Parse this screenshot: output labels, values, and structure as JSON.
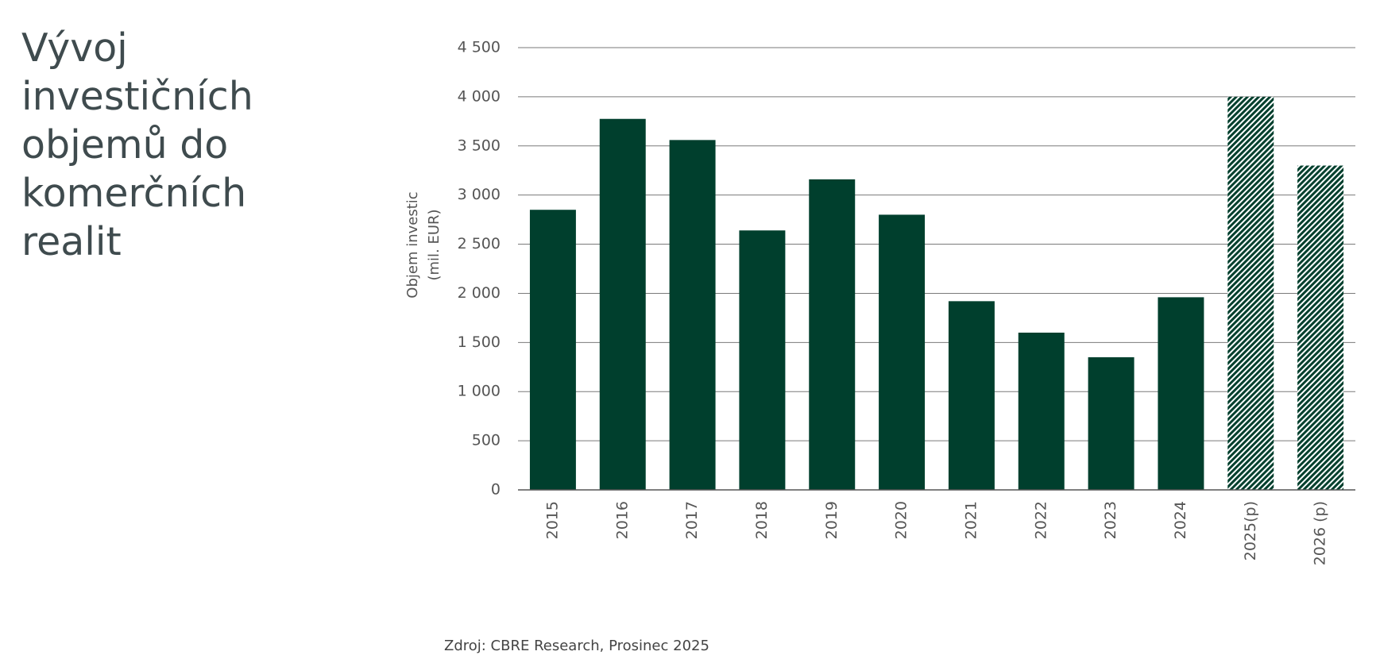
{
  "chart_data": {
    "type": "bar",
    "title": "Vývoj investičních objemů do komerčních realit",
    "ylabel": [
      "Objem investic",
      "(mil. EUR)"
    ],
    "source": "Zdroj: CBRE Research, Prosinec 2025",
    "categories": [
      "2015",
      "2016",
      "2017",
      "2018",
      "2019",
      "2020",
      "2021",
      "2022",
      "2023",
      "2024",
      "2025(p)",
      "2026 (p)"
    ],
    "values": [
      2850,
      3775,
      3560,
      2640,
      3160,
      2800,
      1920,
      1600,
      1350,
      1960,
      4000,
      3300
    ],
    "hatched": [
      false,
      false,
      false,
      false,
      false,
      false,
      false,
      false,
      false,
      false,
      true,
      true
    ],
    "color": "#003f2d",
    "ylim": [
      0,
      4500
    ],
    "yticks": [
      0,
      500,
      {
        "value": 1000,
        "label": "1 000"
      },
      {
        "value": 1500,
        "label": "1 500"
      },
      {
        "value": 2000,
        "label": "2 000"
      },
      {
        "value": 2500,
        "label": "2 500"
      },
      {
        "value": 3000,
        "label": "3 000"
      },
      {
        "value": 3500,
        "label": "3 500"
      },
      {
        "value": 4000,
        "label": "4 000"
      },
      {
        "value": 4500,
        "label": "4 500"
      }
    ],
    "grid": true
  }
}
